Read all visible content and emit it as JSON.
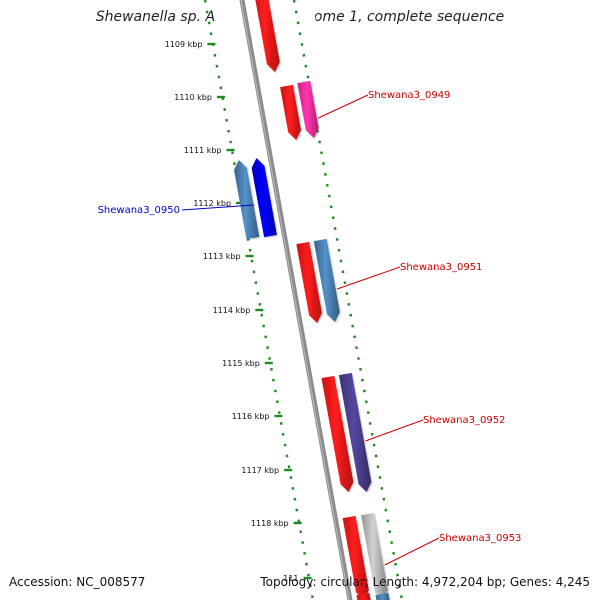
{
  "title": "Shewanella sp. ANA-3 chromosome 1, complete sequence",
  "footer": {
    "accession": "Accession: NC_008577",
    "topology": "Topology: circular; Length: 4,972,204 bp; Genes: 4,245"
  },
  "ticks": [
    "1109 kbp",
    "1110 kbp",
    "1111 kbp",
    "1112 kbp",
    "1113 kbp",
    "1114 kbp",
    "1115 kbp",
    "1116 kbp",
    "1117 kbp",
    "1118 kbp",
    "111"
  ],
  "genes": [
    {
      "id": "g-top-1",
      "strand": "forward",
      "color": "#ff1a1a"
    },
    {
      "id": "g-0949-a",
      "strand": "forward",
      "color": "#ff1a1a"
    },
    {
      "id": "g-0949-b",
      "strand": "forward",
      "color": "#ff2fa0",
      "label": "Shewana3_0949",
      "label_color": "#cc0000"
    },
    {
      "id": "g-0950-a",
      "strand": "reverse",
      "color": "#4a82b4"
    },
    {
      "id": "g-0950-b",
      "strand": "reverse",
      "color": "#0000ee",
      "label": "Shewana3_0950",
      "label_color": "#0000cc"
    },
    {
      "id": "g-0951-a",
      "strand": "forward",
      "color": "#ff1a1a"
    },
    {
      "id": "g-0951-b",
      "strand": "forward",
      "color": "#4a82b4",
      "label": "Shewana3_0951",
      "label_color": "#cc0000"
    },
    {
      "id": "g-0952-a",
      "strand": "forward",
      "color": "#ff1a1a"
    },
    {
      "id": "g-0952-b",
      "strand": "forward",
      "color": "#4b3f8f",
      "label": "Shewana3_0952",
      "label_color": "#cc0000"
    },
    {
      "id": "g-0953-a",
      "strand": "forward",
      "color": "#ff1a1a"
    },
    {
      "id": "g-0953-b",
      "strand": "forward",
      "color": "#bbbbbb",
      "label": "Shewana3_0953",
      "label_color": "#cc0000"
    },
    {
      "id": "g-bot-1",
      "strand": "forward",
      "color": "#ff1a1a"
    },
    {
      "id": "g-bot-2",
      "strand": "forward",
      "color": "#4a82b4"
    }
  ],
  "colors": {
    "backbone": "#8c8c8c",
    "ruler": "#1d8a1d"
  }
}
